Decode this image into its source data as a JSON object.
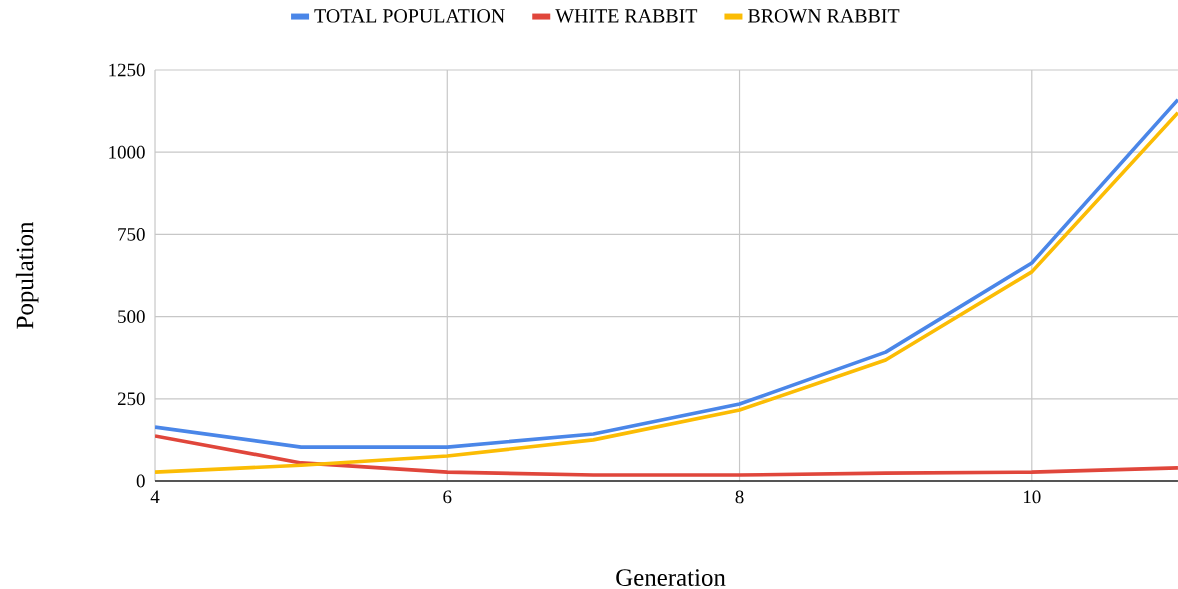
{
  "chart_data": {
    "type": "line",
    "xlabel": "Generation",
    "ylabel": "Population",
    "x": [
      4,
      5,
      6,
      7,
      8,
      9,
      10,
      11
    ],
    "series": [
      {
        "name": "TOTAL POPULATION",
        "color": "#4a86e8",
        "values": [
          164,
          103,
          103,
          143,
          234,
          392,
          663,
          1160
        ]
      },
      {
        "name": "WHITE RABBIT",
        "color": "#e0463b",
        "values": [
          137,
          55,
          27,
          18,
          18,
          24,
          27,
          40
        ]
      },
      {
        "name": "BROWN RABBIT",
        "color": "#fbbc04",
        "values": [
          27,
          48,
          76,
          125,
          216,
          368,
          636,
          1120
        ]
      }
    ],
    "xlim": [
      4,
      11
    ],
    "xticks": [
      4,
      6,
      8,
      10
    ],
    "ylim": [
      0,
      1250
    ],
    "yticks": [
      0,
      250,
      500,
      750,
      1000,
      1250
    ],
    "grid": true,
    "legend": "top",
    "marker": "none",
    "line_style": "solid"
  }
}
